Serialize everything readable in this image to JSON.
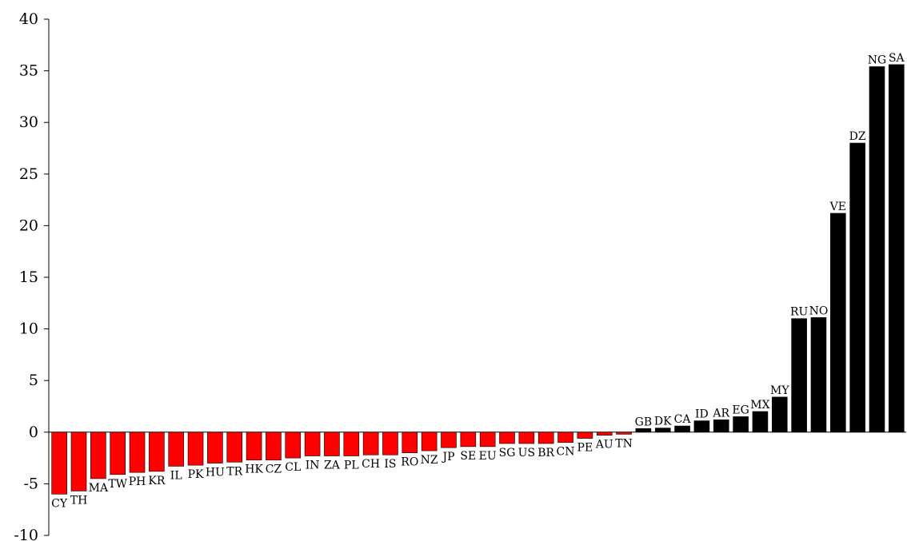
{
  "chart_data": {
    "type": "bar",
    "title": "",
    "xlabel": "",
    "ylabel": "",
    "ylim": [
      -10,
      40
    ],
    "yticks": [
      -10,
      -5,
      0,
      5,
      10,
      15,
      20,
      25,
      30,
      35,
      40
    ],
    "grid": false,
    "legend": "none",
    "colors": {
      "negative": "#ff0000",
      "positive": "#000000"
    },
    "categories": [
      "CY",
      "TH",
      "MA",
      "TW",
      "PH",
      "KR",
      "IL",
      "PK",
      "HU",
      "TR",
      "HK",
      "CZ",
      "CL",
      "IN",
      "ZA",
      "PL",
      "CH",
      "IS",
      "RO",
      "NZ",
      "JP",
      "SE",
      "EU",
      "SG",
      "US",
      "BR",
      "CN",
      "PE",
      "AU",
      "TN",
      "GB",
      "DK",
      "CA",
      "ID",
      "AR",
      "EG",
      "MX",
      "MY",
      "RU",
      "NO",
      "VE",
      "DZ",
      "NG",
      "SA"
    ],
    "values": [
      -6.0,
      -5.7,
      -4.5,
      -4.1,
      -3.9,
      -3.8,
      -3.3,
      -3.2,
      -3.0,
      -2.9,
      -2.7,
      -2.7,
      -2.5,
      -2.3,
      -2.3,
      -2.3,
      -2.2,
      -2.2,
      -2.0,
      -1.8,
      -1.5,
      -1.4,
      -1.4,
      -1.1,
      -1.1,
      -1.1,
      -1.0,
      -0.6,
      -0.3,
      -0.2,
      0.35,
      0.4,
      0.6,
      1.1,
      1.2,
      1.5,
      2.0,
      3.4,
      11.0,
      11.1,
      21.2,
      28.0,
      35.4,
      35.6
    ]
  }
}
